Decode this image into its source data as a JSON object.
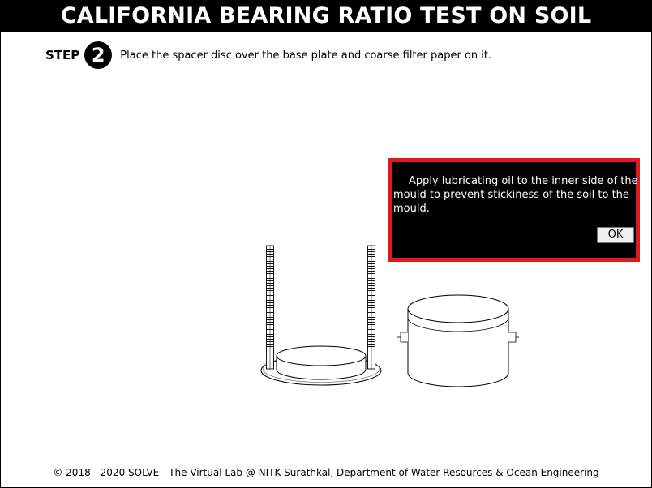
{
  "title": "CALIFORNIA BEARING RATIO TEST ON SOIL",
  "step": {
    "label": "STEP",
    "number": "2",
    "instruction": "Place the spacer disc over the base plate and coarse filter paper on it."
  },
  "dialog": {
    "message": "Apply lubricating oil to the inner side of the mould to prevent stickiness of the soil to the mould.",
    "ok_label": "OK",
    "border_color": "#e0191f"
  },
  "footer": {
    "text": "© 2018 - 2020 SOLVE - The Virtual Lab @ NITK Surathkal, Department of Water Resources & Ocean Engineering"
  }
}
